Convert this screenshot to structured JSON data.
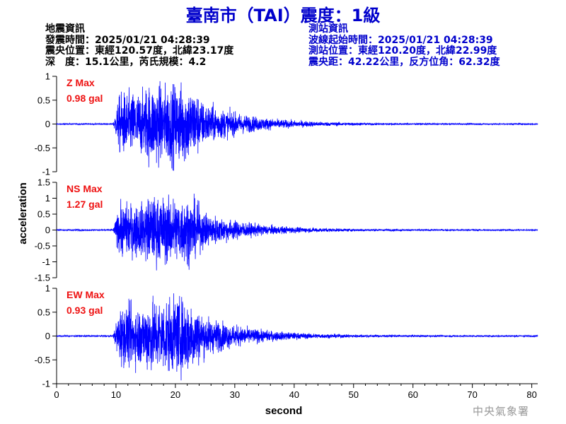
{
  "header": {
    "title": "臺南市（TAI）震度：1級"
  },
  "earthquake_info": {
    "heading": "地震資訊",
    "time": "發震時間：2025/01/21 04:28:39",
    "location": "震央位置：東經120.57度，北緯23.17度",
    "depth_mag": "深　度：15.1公里，芮氏規模：4.2"
  },
  "station_info": {
    "heading": "測站資訊",
    "onset": "波線起始時間：2025/01/21 04:28:39",
    "location": "測站位置：東經120.20度，北緯22.99度",
    "distance": "震央距：42.22公里，反方位角：62.32度"
  },
  "credit": "中央氣象署",
  "colors": {
    "title": "#0000cc",
    "trace": "#0000ff",
    "max_label": "#ee1111",
    "axis": "#000000"
  },
  "chart_data": {
    "type": "line",
    "ylabel": "acceleration",
    "xlabel": "second",
    "xlim": [
      0,
      81
    ],
    "xticks": [
      0,
      10,
      20,
      30,
      40,
      50,
      60,
      70,
      80
    ],
    "panels": [
      {
        "name": "Z",
        "max_label": "Z Max",
        "max_value": "0.98 gal",
        "peak": 0.98,
        "ylim": [
          -1,
          1
        ],
        "yticks": [
          -1,
          -0.5,
          0,
          0.5,
          1
        ],
        "ytick_labels": [
          "-1",
          "-0.5",
          "0",
          "0.5",
          "1"
        ]
      },
      {
        "name": "NS",
        "max_label": "NS Max",
        "max_value": "1.27 gal",
        "peak": 1.27,
        "ylim": [
          -1.5,
          1.5
        ],
        "yticks": [
          -1.5,
          -1,
          -0.5,
          0,
          0.5,
          1,
          1.5
        ],
        "ytick_labels": [
          "-1.5",
          "-1",
          "-0.5",
          "0",
          "0.5",
          "1",
          "1.5"
        ]
      },
      {
        "name": "EW",
        "max_label": "EW Max",
        "max_value": "0.93 gal",
        "peak": 0.93,
        "ylim": [
          -1,
          1
        ],
        "yticks": [
          -1,
          -0.5,
          0,
          0.5,
          1
        ],
        "ytick_labels": [
          "-1",
          "-0.5",
          "0",
          "0.5",
          "1"
        ]
      }
    ]
  }
}
